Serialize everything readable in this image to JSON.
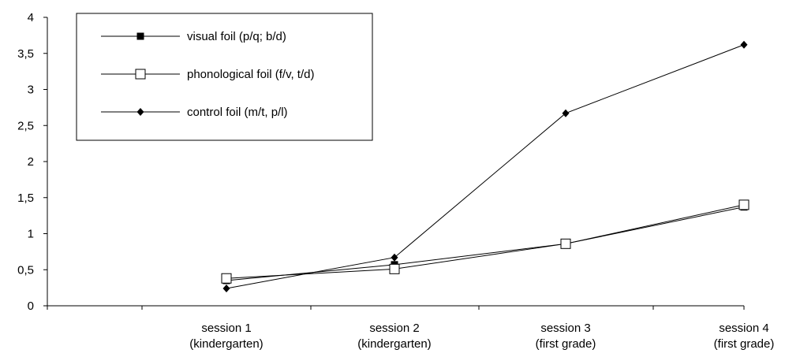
{
  "chart_data": {
    "type": "line",
    "categories": [
      [
        "session 1",
        "(kindergarten)"
      ],
      [
        "session 2",
        "(kindergarten)"
      ],
      [
        "session 3",
        "(first grade)"
      ],
      [
        "session 4",
        "(first grade)"
      ]
    ],
    "y_ticks": [
      "0",
      "0,5",
      "1",
      "1,5",
      "2",
      "2,5",
      "3",
      "3,5",
      "4"
    ],
    "ylim": [
      0,
      4
    ],
    "grid": false,
    "legend_position": "top-left",
    "series": [
      {
        "name": "visual foil (p/q; b/d)",
        "marker": "filled-square",
        "values": [
          0.35,
          0.57,
          0.86,
          1.37
        ]
      },
      {
        "name": "phonological foil (f/v, t/d)",
        "marker": "open-square",
        "values": [
          0.38,
          0.51,
          0.86,
          1.4
        ]
      },
      {
        "name": "control foil (m/t, p/l)",
        "marker": "filled-diamond",
        "values": [
          0.24,
          0.67,
          2.67,
          3.62
        ]
      }
    ]
  }
}
